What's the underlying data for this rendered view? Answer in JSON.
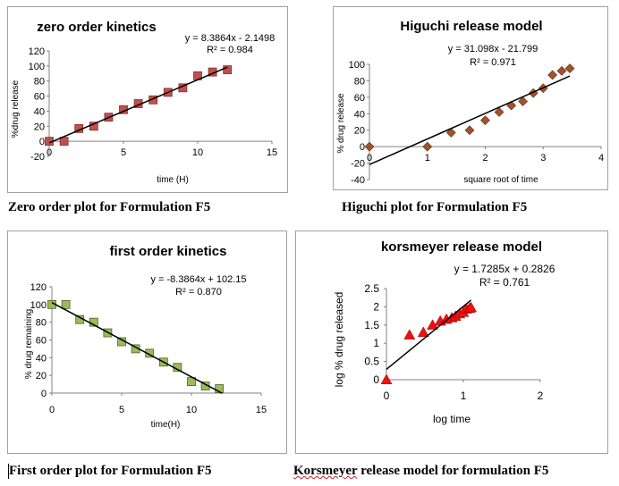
{
  "captions": {
    "zero": "Zero order plot for Formulation F5",
    "higuchi": "Higuchi plot for Formulation F5",
    "first": "First order plot for Formulation F5",
    "kors_word": "Korsmeyer",
    "kors_rest": " release model for formulation F5"
  },
  "chart_data": [
    {
      "id": "zero",
      "type": "scatter",
      "title": "zero order kinetics",
      "xlabel": "time (H)",
      "ylabel": "%drug release",
      "xlim": [
        0,
        15
      ],
      "ylim": [
        -20,
        120
      ],
      "xticks": [
        0,
        5,
        10,
        15
      ],
      "yticks": [
        -20,
        0,
        20,
        40,
        60,
        80,
        100,
        120
      ],
      "marker": "square",
      "color": "#c0504d",
      "x": [
        0,
        1,
        2,
        3,
        4,
        5,
        6,
        7,
        8,
        9,
        10,
        11,
        12
      ],
      "y": [
        0,
        0,
        17,
        20,
        32,
        42,
        50,
        55,
        65,
        71,
        87,
        92,
        95
      ],
      "trendline": {
        "slope": 8.3864,
        "intercept": -2.1498,
        "x_range": [
          0,
          12
        ]
      },
      "equation": "y = 8.3864x - 2.1498",
      "r2": "R² = 0.984"
    },
    {
      "id": "higuchi",
      "type": "scatter",
      "title": "Higuchi release model",
      "xlabel": "square root of time",
      "ylabel": "% drug release",
      "xlim": [
        0,
        4
      ],
      "ylim": [
        -40,
        100
      ],
      "xticks": [
        0,
        1,
        2,
        3,
        4
      ],
      "yticks": [
        -40,
        -20,
        0,
        20,
        40,
        60,
        80,
        100
      ],
      "marker": "diamond",
      "color": "#a0522d",
      "x": [
        0,
        1,
        1.41,
        1.73,
        2,
        2.24,
        2.45,
        2.65,
        2.83,
        3,
        3.16,
        3.32,
        3.46
      ],
      "y": [
        0,
        0,
        17,
        20,
        32,
        42,
        50,
        55,
        65,
        71,
        87,
        92,
        95
      ],
      "trendline": {
        "slope": 31.098,
        "intercept": -21.799,
        "x_range": [
          0,
          3.46
        ]
      },
      "equation": "y = 31.098x - 21.799",
      "r2": "R² = 0.971"
    },
    {
      "id": "first",
      "type": "scatter",
      "title": "first order kinetics",
      "xlabel": "time(H)",
      "ylabel": "% drug remaining",
      "xlim": [
        0,
        15
      ],
      "ylim": [
        0,
        120
      ],
      "xticks": [
        0,
        5,
        10,
        15
      ],
      "yticks": [
        0,
        20,
        40,
        60,
        80,
        100,
        120
      ],
      "marker": "square",
      "color": "#9bbb59",
      "x": [
        0,
        1,
        2,
        3,
        4,
        5,
        6,
        7,
        8,
        9,
        10,
        11,
        12
      ],
      "y": [
        100,
        100,
        83,
        80,
        68,
        58,
        50,
        45,
        35,
        29,
        13,
        8,
        5
      ],
      "trendline": {
        "slope": -8.3864,
        "intercept": 102.15,
        "x_range": [
          0,
          12.2
        ]
      },
      "equation": "y = -8.3864x + 102.15",
      "r2": "R² = 0.870"
    },
    {
      "id": "kors",
      "type": "scatter",
      "title": "korsmeyer  release model",
      "xlabel": "log time",
      "ylabel": "log % drug released",
      "xlim": [
        0,
        2
      ],
      "ylim": [
        0,
        2.5
      ],
      "xticks": [
        0,
        1,
        2
      ],
      "yticks": [
        0,
        0.5,
        1,
        1.5,
        2,
        2.5
      ],
      "marker": "triangle",
      "color": "#ee1111",
      "x": [
        0,
        0.3,
        0.48,
        0.6,
        0.7,
        0.78,
        0.85,
        0.9,
        0.95,
        1.0,
        1.04,
        1.08,
        1.1
      ],
      "y": [
        0,
        1.23,
        1.3,
        1.5,
        1.61,
        1.66,
        1.7,
        1.74,
        1.81,
        1.85,
        1.94,
        1.96,
        1.98
      ],
      "trendline": {
        "slope": 1.7285,
        "intercept": 0.2826,
        "x_range": [
          0,
          1.1
        ]
      },
      "equation": "y = 1.7285x + 0.2826",
      "r2": "R² = 0.761"
    }
  ]
}
